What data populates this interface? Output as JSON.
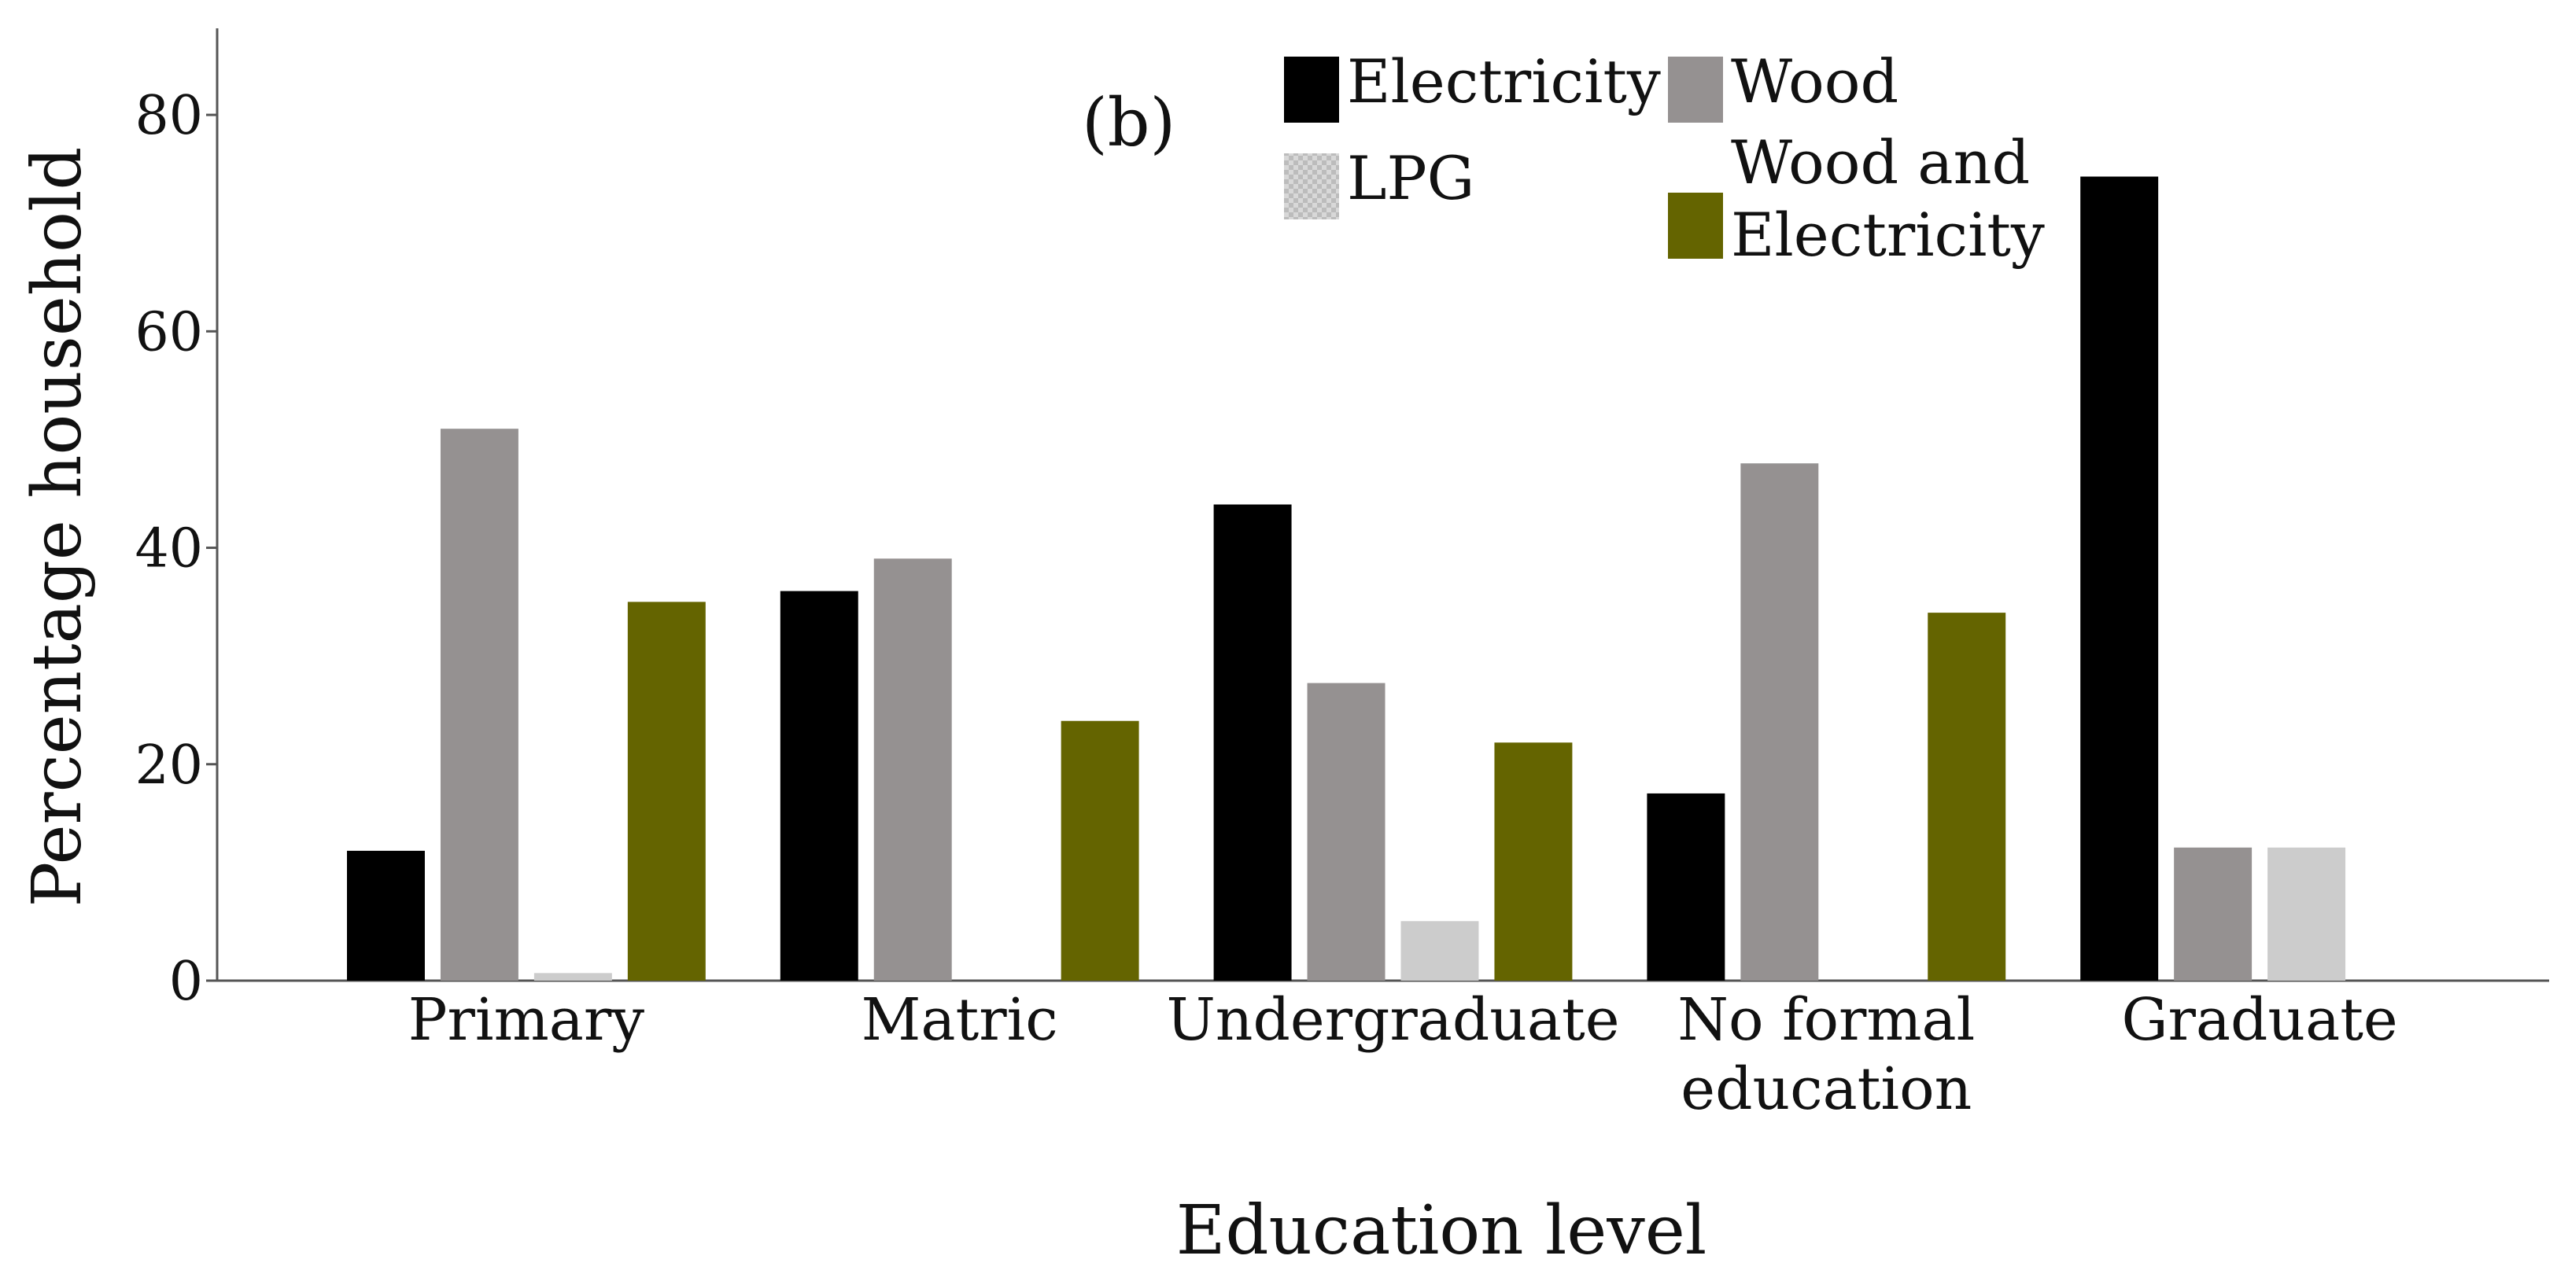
{
  "chart_data": {
    "type": "bar",
    "panel_label": "(b)",
    "xlabel": "Education level",
    "ylabel": "Percentage household",
    "ylim": [
      0,
      88
    ],
    "yticks": [
      0,
      20,
      40,
      60,
      80
    ],
    "categories": [
      [
        "Primary"
      ],
      [
        "Matric"
      ],
      [
        "Undergraduate"
      ],
      [
        "No formal",
        "education"
      ],
      [
        "Graduate"
      ]
    ],
    "series": [
      {
        "name": "Electricity",
        "legend_lines": [
          "Electricity"
        ],
        "color": "#000000",
        "values": [
          12,
          36,
          44,
          17.3,
          74.3
        ]
      },
      {
        "name": "Wood",
        "legend_lines": [
          "Wood"
        ],
        "color": "#959191",
        "values": [
          51,
          39,
          27.5,
          47.8,
          12.3
        ]
      },
      {
        "name": "LPG",
        "legend_lines": [
          "LPG"
        ],
        "color": "#cccccc",
        "values": [
          0.7,
          0,
          5.5,
          0,
          12.3
        ]
      },
      {
        "name": "Wood and Electricity",
        "legend_lines": [
          "Wood and",
          "Electricity"
        ],
        "color": "#646400",
        "values": [
          35,
          24,
          22,
          34,
          0
        ]
      }
    ]
  }
}
